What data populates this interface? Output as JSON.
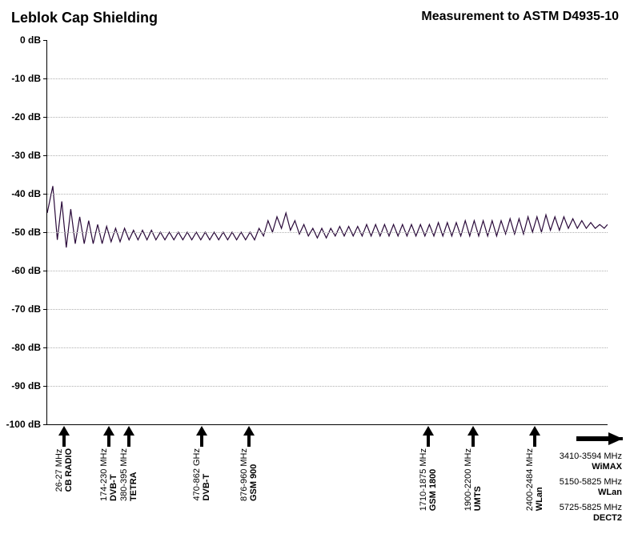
{
  "titles": {
    "left": "Leblok Cap Shielding",
    "right": "Measurement to ASTM D4935-10"
  },
  "chart": {
    "type": "line",
    "background_color": "#ffffff",
    "grid_color": "#b0b0b0",
    "axis_color": "#000000",
    "line_color": "#2a0a3a",
    "line_width": 1.2,
    "yaxis": {
      "min": -100,
      "max": 0,
      "ticks": [
        {
          "v": 0,
          "label": "0 dB"
        },
        {
          "v": -10,
          "label": "-10 dB"
        },
        {
          "v": -20,
          "label": "-20 dB"
        },
        {
          "v": -30,
          "label": "-30 dB"
        },
        {
          "v": -40,
          "label": "-40 dB"
        },
        {
          "v": -50,
          "label": "-50 dB"
        },
        {
          "v": -60,
          "label": "-60 dB"
        },
        {
          "v": -70,
          "label": "-70 dB"
        },
        {
          "v": -80,
          "label": "-80 dB"
        },
        {
          "v": -90,
          "label": "-90 dB"
        },
        {
          "v": -100,
          "label": "-100 dB"
        }
      ]
    },
    "trace": {
      "baseline": -50,
      "points": [
        [
          0.0,
          -45
        ],
        [
          0.01,
          -38
        ],
        [
          0.018,
          -52
        ],
        [
          0.026,
          -42
        ],
        [
          0.034,
          -54
        ],
        [
          0.042,
          -44
        ],
        [
          0.05,
          -53
        ],
        [
          0.058,
          -46
        ],
        [
          0.066,
          -53
        ],
        [
          0.074,
          -47
        ],
        [
          0.082,
          -53
        ],
        [
          0.09,
          -48
        ],
        [
          0.098,
          -53
        ],
        [
          0.106,
          -48.5
        ],
        [
          0.114,
          -52.5
        ],
        [
          0.122,
          -49
        ],
        [
          0.13,
          -52.5
        ],
        [
          0.138,
          -49
        ],
        [
          0.146,
          -52
        ],
        [
          0.154,
          -49.5
        ],
        [
          0.162,
          -52
        ],
        [
          0.17,
          -49.5
        ],
        [
          0.178,
          -52
        ],
        [
          0.186,
          -49.5
        ],
        [
          0.194,
          -52
        ],
        [
          0.202,
          -50
        ],
        [
          0.21,
          -52
        ],
        [
          0.218,
          -50
        ],
        [
          0.226,
          -52
        ],
        [
          0.234,
          -50
        ],
        [
          0.242,
          -52
        ],
        [
          0.25,
          -50
        ],
        [
          0.258,
          -52
        ],
        [
          0.266,
          -50
        ],
        [
          0.274,
          -52
        ],
        [
          0.282,
          -50
        ],
        [
          0.29,
          -52
        ],
        [
          0.298,
          -50
        ],
        [
          0.306,
          -52
        ],
        [
          0.314,
          -50
        ],
        [
          0.322,
          -52
        ],
        [
          0.33,
          -50
        ],
        [
          0.338,
          -52
        ],
        [
          0.346,
          -50
        ],
        [
          0.354,
          -52
        ],
        [
          0.362,
          -50
        ],
        [
          0.37,
          -52
        ],
        [
          0.378,
          -49
        ],
        [
          0.386,
          -51
        ],
        [
          0.394,
          -47
        ],
        [
          0.402,
          -50
        ],
        [
          0.41,
          -46
        ],
        [
          0.418,
          -49
        ],
        [
          0.426,
          -45
        ],
        [
          0.434,
          -49.5
        ],
        [
          0.442,
          -47
        ],
        [
          0.45,
          -50.5
        ],
        [
          0.458,
          -48
        ],
        [
          0.466,
          -51
        ],
        [
          0.474,
          -49
        ],
        [
          0.482,
          -51.5
        ],
        [
          0.49,
          -49
        ],
        [
          0.498,
          -51.5
        ],
        [
          0.506,
          -49
        ],
        [
          0.514,
          -51
        ],
        [
          0.522,
          -48.5
        ],
        [
          0.53,
          -51
        ],
        [
          0.538,
          -48.5
        ],
        [
          0.546,
          -51
        ],
        [
          0.554,
          -48.5
        ],
        [
          0.562,
          -51
        ],
        [
          0.57,
          -48
        ],
        [
          0.578,
          -51
        ],
        [
          0.586,
          -48
        ],
        [
          0.594,
          -51
        ],
        [
          0.602,
          -48
        ],
        [
          0.61,
          -51
        ],
        [
          0.618,
          -48
        ],
        [
          0.626,
          -51
        ],
        [
          0.634,
          -48
        ],
        [
          0.642,
          -51
        ],
        [
          0.65,
          -48
        ],
        [
          0.658,
          -51
        ],
        [
          0.666,
          -48
        ],
        [
          0.674,
          -51
        ],
        [
          0.682,
          -48
        ],
        [
          0.69,
          -51
        ],
        [
          0.698,
          -47.5
        ],
        [
          0.706,
          -51
        ],
        [
          0.714,
          -47.5
        ],
        [
          0.722,
          -51
        ],
        [
          0.73,
          -47.5
        ],
        [
          0.738,
          -51
        ],
        [
          0.746,
          -47
        ],
        [
          0.754,
          -51
        ],
        [
          0.762,
          -47
        ],
        [
          0.77,
          -51
        ],
        [
          0.778,
          -47
        ],
        [
          0.786,
          -51
        ],
        [
          0.794,
          -47
        ],
        [
          0.802,
          -51
        ],
        [
          0.81,
          -47
        ],
        [
          0.818,
          -50.5
        ],
        [
          0.826,
          -46.5
        ],
        [
          0.834,
          -50.5
        ],
        [
          0.842,
          -46.5
        ],
        [
          0.85,
          -50.5
        ],
        [
          0.858,
          -46
        ],
        [
          0.866,
          -50
        ],
        [
          0.874,
          -46
        ],
        [
          0.882,
          -50
        ],
        [
          0.89,
          -45.5
        ],
        [
          0.898,
          -49.5
        ],
        [
          0.906,
          -46
        ],
        [
          0.914,
          -49.5
        ],
        [
          0.922,
          -46
        ],
        [
          0.93,
          -49
        ],
        [
          0.938,
          -46.5
        ],
        [
          0.946,
          -49
        ],
        [
          0.954,
          -47
        ],
        [
          0.962,
          -49
        ],
        [
          0.97,
          -47.5
        ],
        [
          0.978,
          -49
        ],
        [
          0.986,
          -48
        ],
        [
          0.994,
          -49
        ],
        [
          1.0,
          -48
        ]
      ]
    },
    "freq_markers": [
      {
        "x_frac": 0.03,
        "line1": "26-27 MHz",
        "line2": "CB RADIO"
      },
      {
        "x_frac": 0.11,
        "line1": "174-230 MHz",
        "line2": "DVB-T"
      },
      {
        "x_frac": 0.145,
        "line1": "380-395 MHz",
        "line2": "TETRA"
      },
      {
        "x_frac": 0.275,
        "line1": "470-862 GHz",
        "line2": "DVB-T"
      },
      {
        "x_frac": 0.36,
        "line1": "876-960 MHz",
        "line2": "GSM 900"
      },
      {
        "x_frac": 0.68,
        "line1": "1710-1875 MHz",
        "line2": "GSM 1800"
      },
      {
        "x_frac": 0.76,
        "line1": "1900-2200 MHz",
        "line2": "UMTS"
      },
      {
        "x_frac": 0.87,
        "line1": "2400-2484 MHz",
        "line2": "WLan"
      }
    ],
    "right_bands": [
      {
        "line1": "3410-3594 MHz",
        "line2": "WiMAX"
      },
      {
        "line1": "5150-5825 MHz",
        "line2": "WLan"
      },
      {
        "line1": "5725-5825 MHz",
        "line2": "DECT2"
      }
    ]
  }
}
